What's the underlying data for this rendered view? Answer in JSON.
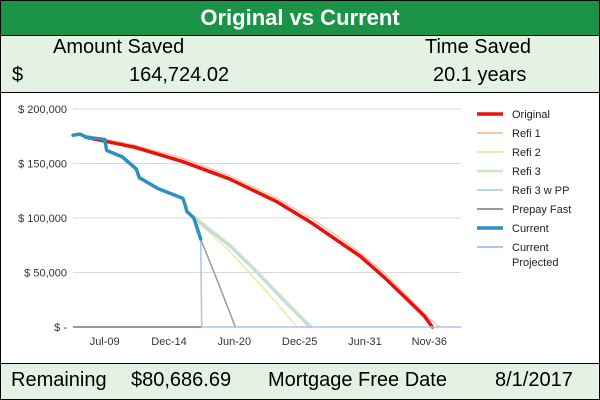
{
  "title": "Original vs Current",
  "summary": {
    "amount_saved_label": "Amount Saved",
    "currency_symbol": "$",
    "amount_saved_value": "164,724.02",
    "time_saved_label": "Time Saved",
    "time_saved_value": "20.1 years"
  },
  "footer": {
    "remaining_label": "Remaining",
    "remaining_value": "$80,686.69",
    "free_date_label": "Mortgage Free Date",
    "free_date_value": "8/1/2017"
  },
  "colors": {
    "header_bg": "#1a9346",
    "panel_bg": "#e4f2e4"
  },
  "chart_data": {
    "type": "line",
    "xlabel": "",
    "ylabel": "",
    "x_ticks": [
      {
        "label": "Jul-09",
        "date": "2009-07"
      },
      {
        "label": "Dec-14",
        "date": "2014-12"
      },
      {
        "label": "Jun-20",
        "date": "2020-06"
      },
      {
        "label": "Dec-25",
        "date": "2025-12"
      },
      {
        "label": "Jun-31",
        "date": "2031-06"
      },
      {
        "label": "Nov-36",
        "date": "2036-11"
      }
    ],
    "xlim": [
      "2006-11",
      "2039-07"
    ],
    "y_ticks": [
      {
        "label": "$ -",
        "value": 0
      },
      {
        "label": "$ 50,000",
        "value": 50000
      },
      {
        "label": "$ 100,000",
        "value": 100000
      },
      {
        "label": "$ 150,000",
        "value": 150000
      },
      {
        "label": "$ 200,000",
        "value": 200000
      }
    ],
    "ylim": [
      0,
      200000
    ],
    "grid": true,
    "legend_position": "right",
    "series": [
      {
        "name": "Original",
        "color": "#e8120c",
        "width": 3.5,
        "points": [
          [
            "2007-12",
            174000
          ],
          [
            "2012-01",
            165000
          ],
          [
            "2016-01",
            152000
          ],
          [
            "2020-01",
            136000
          ],
          [
            "2024-01",
            115000
          ],
          [
            "2027-01",
            95000
          ],
          [
            "2029-01",
            80000
          ],
          [
            "2031-01",
            65000
          ],
          [
            "2033-01",
            46000
          ],
          [
            "2035-01",
            25000
          ],
          [
            "2036-06",
            10000
          ],
          [
            "2037-02",
            0
          ]
        ]
      },
      {
        "name": "Refi 1",
        "color": "#f5c6a8",
        "width": 1.5,
        "points": [
          [
            "2007-12",
            176000
          ],
          [
            "2012-01",
            167000
          ],
          [
            "2016-01",
            155000
          ],
          [
            "2020-01",
            139000
          ],
          [
            "2024-01",
            118000
          ],
          [
            "2027-01",
            99000
          ],
          [
            "2029-01",
            84000
          ],
          [
            "2031-01",
            68000
          ],
          [
            "2033-01",
            50000
          ],
          [
            "2035-01",
            28000
          ],
          [
            "2036-06",
            12000
          ],
          [
            "2037-09",
            0
          ]
        ]
      },
      {
        "name": "Refi 2",
        "color": "#f9e3a6",
        "width": 1.5,
        "points": [
          [
            "2016-07",
            105000
          ],
          [
            "2018-01",
            90000
          ],
          [
            "2020-01",
            70000
          ],
          [
            "2022-01",
            46000
          ],
          [
            "2024-01",
            22000
          ],
          [
            "2025-09",
            0
          ]
        ]
      },
      {
        "name": "Refi 3",
        "color": "#cde6c6",
        "width": 2.5,
        "points": [
          [
            "2016-07",
            106000
          ],
          [
            "2018-01",
            93000
          ],
          [
            "2020-01",
            76000
          ],
          [
            "2022-01",
            55000
          ],
          [
            "2024-01",
            32000
          ],
          [
            "2026-01",
            10000
          ],
          [
            "2026-12",
            0
          ]
        ]
      },
      {
        "name": "Refi 3 w PP",
        "color": "#b9d5ec",
        "width": 1.5,
        "points": [
          [
            "2016-07",
            104000
          ],
          [
            "2018-01",
            91000
          ],
          [
            "2020-01",
            74000
          ],
          [
            "2022-01",
            53000
          ],
          [
            "2024-01",
            30000
          ],
          [
            "2026-01",
            8000
          ],
          [
            "2026-09",
            0
          ]
        ]
      },
      {
        "name": "Prepay Fast",
        "color": "#9a9a9a",
        "width": 1.5,
        "points": [
          [
            "2017-08",
            80687
          ],
          [
            "2019-02",
            40000
          ],
          [
            "2020-07",
            0
          ]
        ]
      },
      {
        "name": "Current",
        "color": "#2e8fc4",
        "width": 3.5,
        "points": [
          [
            "2006-11",
            176000
          ],
          [
            "2007-06",
            177000
          ],
          [
            "2008-01",
            174000
          ],
          [
            "2009-07",
            172000
          ],
          [
            "2009-09",
            162000
          ],
          [
            "2011-01",
            156000
          ],
          [
            "2012-03",
            145000
          ],
          [
            "2012-06",
            137000
          ],
          [
            "2014-01",
            127000
          ],
          [
            "2016-02",
            118000
          ],
          [
            "2016-05",
            110000
          ],
          [
            "2016-06",
            106000
          ],
          [
            "2017-01",
            100000
          ],
          [
            "2017-08",
            80687
          ]
        ]
      },
      {
        "name": "Current Projected",
        "color": "#a9c5ea",
        "width": 1.5,
        "points": [
          [
            "2017-08",
            80687
          ],
          [
            "2017-09",
            0
          ],
          [
            "2039-07",
            0
          ]
        ]
      }
    ]
  }
}
